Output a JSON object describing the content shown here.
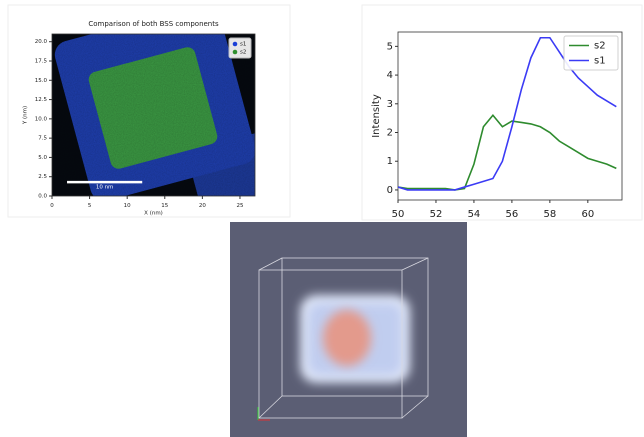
{
  "chart_data": [
    {
      "type": "image",
      "title": "Comparison of both BSS components",
      "x_label": "X (nm)",
      "y_label": "Y (nm)",
      "xlim": [
        0,
        27
      ],
      "ylim": [
        0,
        21
      ],
      "xticks": [
        0,
        5,
        10,
        15,
        20,
        25
      ],
      "yticks": [
        {
          "value": 0,
          "label": "0.0"
        },
        2.5,
        {
          "value": 5,
          "label": "5.0"
        },
        7.5,
        {
          "value": 10,
          "label": "10.0"
        },
        12.5,
        {
          "value": 15,
          "label": "15.0"
        },
        17.5,
        {
          "value": 20,
          "label": "20.0"
        }
      ],
      "series": [
        {
          "name": "s1",
          "color": "#1a3fd6"
        },
        {
          "name": "s2",
          "color": "#2f8f2f"
        }
      ],
      "scale_bar_label": "10 nm",
      "legend": "upper right"
    },
    {
      "type": "line",
      "y_label": "Intensity",
      "x": [
        50,
        50.5,
        51,
        51.5,
        52,
        52.5,
        53,
        53.5,
        54,
        54.5,
        55,
        55.5,
        56,
        56.5,
        57,
        57.5,
        58,
        58.5,
        59,
        59.5,
        60,
        60.5,
        61,
        61.5
      ],
      "series": [
        {
          "name": "s2",
          "color": "#2e8b2e",
          "values": [
            0.1,
            0.05,
            0.05,
            0.05,
            0.05,
            0.05,
            0,
            0.05,
            0.9,
            2.2,
            2.6,
            2.2,
            2.4,
            2.35,
            2.3,
            2.2,
            2.0,
            1.7,
            1.5,
            1.3,
            1.1,
            1.0,
            0.9,
            0.75
          ]
        },
        {
          "name": "s1",
          "color": "#3b3bf5",
          "values": [
            0.1,
            0,
            0,
            0,
            0,
            0,
            0,
            0.1,
            0.2,
            0.3,
            0.4,
            1.0,
            2.2,
            3.5,
            4.6,
            5.3,
            5.3,
            4.8,
            4.3,
            3.9,
            3.6,
            3.3,
            3.1,
            2.9
          ]
        }
      ],
      "xlim": [
        50,
        61.8
      ],
      "ylim": [
        -0.35,
        5.5
      ],
      "xticks": [
        50,
        52,
        54,
        56,
        58,
        60
      ],
      "yticks": [
        0,
        1,
        2,
        3,
        4,
        5
      ],
      "legend": "upper right"
    }
  ]
}
